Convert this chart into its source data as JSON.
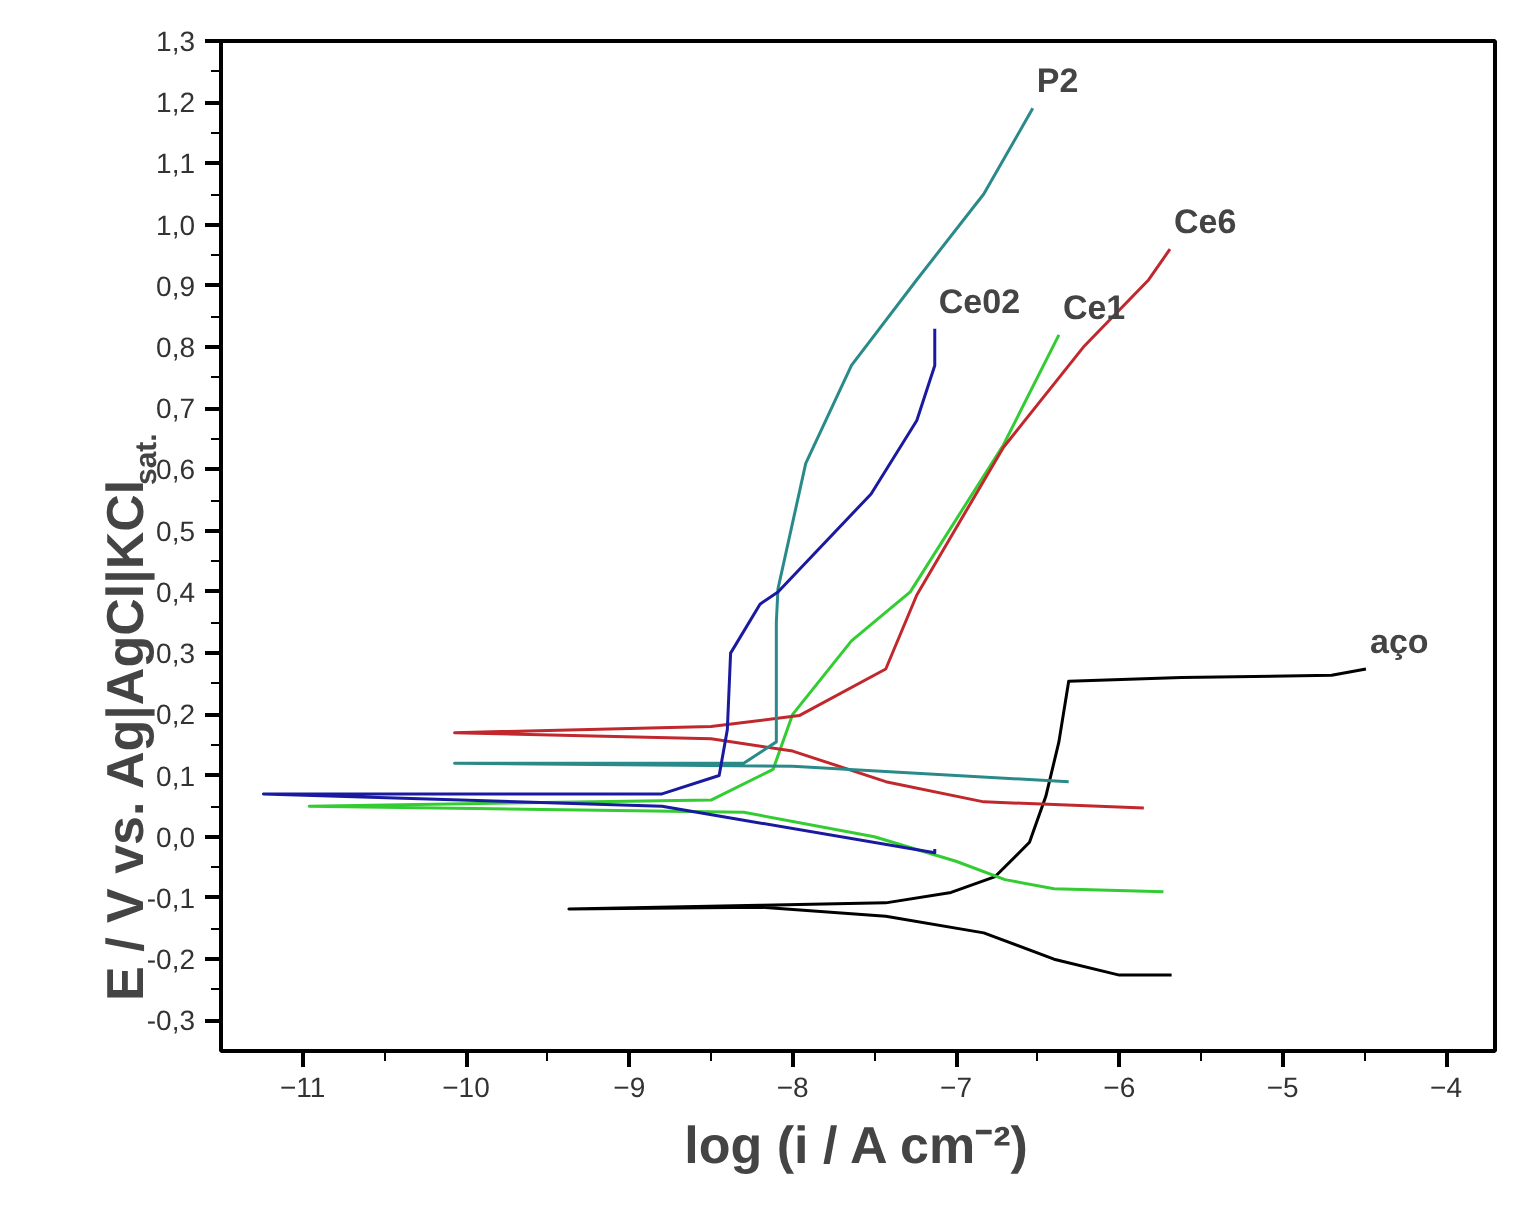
{
  "chart_data": {
    "type": "line",
    "xlabel": "log (i / A cm⁻²)",
    "ylabel": "E / V vs. Ag|AgCl|KCl$_{sat.}$",
    "xlim": [
      -11.5,
      -3.7
    ],
    "ylim": [
      -0.35,
      1.3
    ],
    "xticks": [
      -11,
      -10,
      -9,
      -8,
      -7,
      -6,
      -5,
      -4
    ],
    "yticks": [
      {
        "value": -0.3,
        "label": "-0,3"
      },
      {
        "value": -0.2,
        "label": "-0,2"
      },
      {
        "value": -0.1,
        "label": "-0,1"
      },
      {
        "value": 0.0,
        "label": "0,0"
      },
      {
        "value": 0.1,
        "label": "0,1"
      },
      {
        "value": 0.2,
        "label": "0,2"
      },
      {
        "value": 0.3,
        "label": "0,3"
      },
      {
        "value": 0.4,
        "label": "0,4"
      },
      {
        "value": 0.5,
        "label": "0,5"
      },
      {
        "value": 0.6,
        "label": "0,6"
      },
      {
        "value": 0.7,
        "label": "0,7"
      },
      {
        "value": 0.8,
        "label": "0,8"
      },
      {
        "value": 0.9,
        "label": "0,9"
      },
      {
        "value": 1.0,
        "label": "1,0"
      },
      {
        "value": 1.1,
        "label": "1,1"
      },
      {
        "value": 1.2,
        "label": "1,2"
      },
      {
        "value": 1.3,
        "label": "1,3"
      }
    ],
    "grid": false,
    "marker": "none",
    "line_style": "solid",
    "series": [
      {
        "name": "aço",
        "color": "#000000",
        "x": [
          -5.68,
          -6.0,
          -6.4,
          -6.83,
          -7.43,
          -8.2,
          -9.37,
          -8.2,
          -7.43,
          -7.03,
          -6.76,
          -6.55,
          -6.45,
          -6.37,
          -6.31,
          -5.62,
          -4.7,
          -4.49
        ],
        "values": [
          -0.226,
          -0.226,
          -0.2,
          -0.157,
          -0.13,
          -0.115,
          -0.118,
          -0.112,
          -0.108,
          -0.091,
          -0.065,
          -0.009,
          0.066,
          0.155,
          0.254,
          0.26,
          0.264,
          0.274
        ]
      },
      {
        "name": "Ce1",
        "color": "#33cc33",
        "x": [
          -5.73,
          -6.4,
          -6.7,
          -7.0,
          -7.5,
          -8.3,
          -10.96,
          -8.5,
          -8.12,
          -8.0,
          -7.64,
          -7.28,
          -6.71,
          -6.37
        ],
        "values": [
          -0.09,
          -0.085,
          -0.07,
          -0.04,
          0.0,
          0.04,
          0.05,
          0.06,
          0.11,
          0.2,
          0.32,
          0.4,
          0.64,
          0.82
        ]
      },
      {
        "name": "Ce6",
        "color": "#c0282d",
        "x": [
          -5.85,
          -6.83,
          -7.43,
          -8.0,
          -8.5,
          -10.07,
          -8.5,
          -7.96,
          -7.43,
          -7.24,
          -6.71,
          -6.22,
          -5.82,
          -5.69
        ],
        "values": [
          0.047,
          0.057,
          0.09,
          0.14,
          0.16,
          0.17,
          0.18,
          0.198,
          0.274,
          0.395,
          0.636,
          0.8,
          0.91,
          0.96
        ]
      },
      {
        "name": "P2",
        "color": "#2a8a8a",
        "x": [
          -6.31,
          -7.0,
          -8.0,
          -10.07,
          -8.3,
          -8.1,
          -8.1,
          -8.09,
          -7.92,
          -7.64,
          -7.24,
          -6.83,
          -6.53
        ],
        "values": [
          0.09,
          0.1,
          0.115,
          0.12,
          0.12,
          0.155,
          0.35,
          0.405,
          0.61,
          0.77,
          0.91,
          1.05,
          1.19
        ]
      },
      {
        "name": "Ce02",
        "color": "#1a1aa0",
        "x": [
          -7.13,
          -7.13,
          -8.3,
          -8.8,
          -11.24,
          -8.8,
          -8.45,
          -8.4,
          -8.38,
          -8.2,
          -8.09,
          -7.52,
          -7.24,
          -7.13,
          -7.13
        ],
        "values": [
          -0.02,
          -0.026,
          0.027,
          0.05,
          0.07,
          0.07,
          0.1,
          0.175,
          0.3,
          0.38,
          0.4,
          0.56,
          0.68,
          0.77,
          0.83
        ]
      }
    ]
  }
}
